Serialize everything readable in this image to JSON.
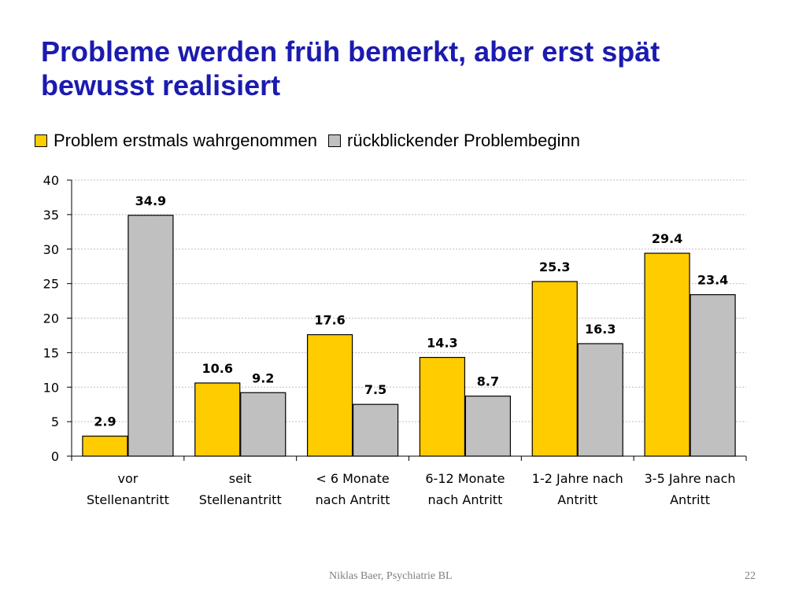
{
  "slide": {
    "title_line1": "Probleme werden früh bemerkt, aber erst spät",
    "title_line2": "bewusst realisiert",
    "footer_author": "Niklas Baer, Psychiatrie BL",
    "page_number": "22"
  },
  "chart_data": {
    "type": "bar",
    "title": "",
    "xlabel": "",
    "ylabel": "",
    "ylim": [
      0,
      40
    ],
    "yticks": [
      0,
      5,
      10,
      15,
      20,
      25,
      30,
      35,
      40
    ],
    "grid": true,
    "legend_position": "top-left",
    "categories": [
      [
        "vor",
        "Stellenantritt"
      ],
      [
        "seit",
        "Stellenantritt"
      ],
      [
        "< 6 Monate",
        "nach Antritt"
      ],
      [
        "6-12 Monate",
        "nach Antritt"
      ],
      [
        "1-2 Jahre nach",
        "Antritt"
      ],
      [
        "3-5 Jahre nach",
        "Antritt"
      ]
    ],
    "series": [
      {
        "name": "Problem erstmals wahrgenommen",
        "color": "#ffcc00",
        "values": [
          2.9,
          10.6,
          17.6,
          14.3,
          25.3,
          29.4
        ]
      },
      {
        "name": "rückblickender Problembeginn",
        "color": "#c0c0c0",
        "values": [
          34.9,
          9.2,
          7.5,
          8.7,
          16.3,
          23.4
        ]
      }
    ]
  }
}
